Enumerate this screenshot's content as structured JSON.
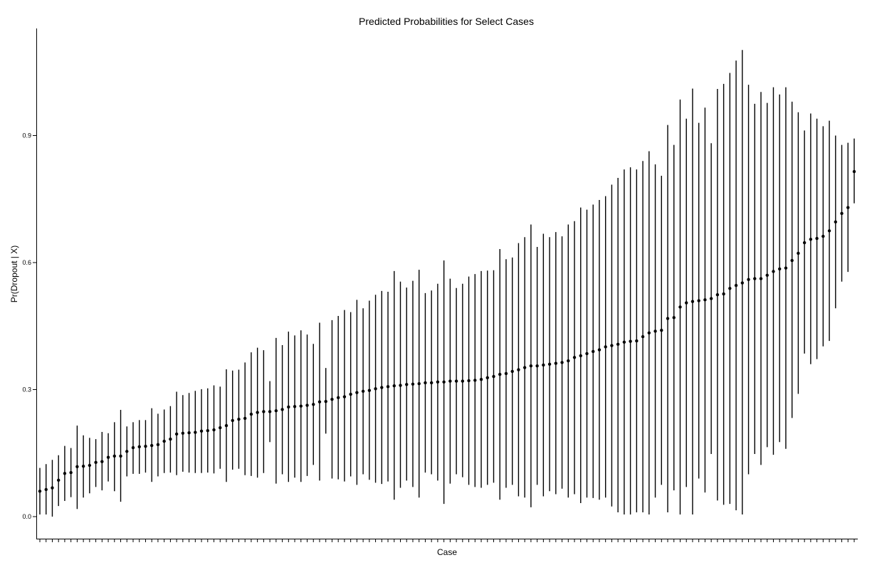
{
  "chart_data": {
    "type": "scatter",
    "title": "Predicted Probabilities for Select Cases",
    "xlabel": "Case",
    "ylabel": "Pr(Dropout | X)",
    "ylim": [
      -0.05,
      1.15
    ],
    "yticks": [
      0.0,
      0.3,
      0.6,
      0.9
    ],
    "ytick_labels": [
      "0.0",
      "0.3",
      "0.6",
      "0.9"
    ],
    "grid": false,
    "legend": "none",
    "error_bars": true,
    "points": [
      {
        "x": 1,
        "y": 0.06,
        "lo": 0.005,
        "hi": 0.115
      },
      {
        "x": 2,
        "y": 0.064,
        "lo": 0.005,
        "hi": 0.124
      },
      {
        "x": 3,
        "y": 0.068,
        "lo": 0.0,
        "hi": 0.134
      },
      {
        "x": 4,
        "y": 0.086,
        "lo": 0.025,
        "hi": 0.145
      },
      {
        "x": 5,
        "y": 0.102,
        "lo": 0.037,
        "hi": 0.167
      },
      {
        "x": 6,
        "y": 0.104,
        "lo": 0.046,
        "hi": 0.162
      },
      {
        "x": 7,
        "y": 0.118,
        "lo": 0.018,
        "hi": 0.215
      },
      {
        "x": 8,
        "y": 0.119,
        "lo": 0.045,
        "hi": 0.192
      },
      {
        "x": 9,
        "y": 0.121,
        "lo": 0.055,
        "hi": 0.186
      },
      {
        "x": 10,
        "y": 0.128,
        "lo": 0.07,
        "hi": 0.183
      },
      {
        "x": 11,
        "y": 0.13,
        "lo": 0.062,
        "hi": 0.2
      },
      {
        "x": 12,
        "y": 0.14,
        "lo": 0.083,
        "hi": 0.197
      },
      {
        "x": 13,
        "y": 0.143,
        "lo": 0.06,
        "hi": 0.223
      },
      {
        "x": 14,
        "y": 0.143,
        "lo": 0.035,
        "hi": 0.252
      },
      {
        "x": 15,
        "y": 0.154,
        "lo": 0.095,
        "hi": 0.213
      },
      {
        "x": 16,
        "y": 0.163,
        "lo": 0.101,
        "hi": 0.223
      },
      {
        "x": 17,
        "y": 0.165,
        "lo": 0.101,
        "hi": 0.228
      },
      {
        "x": 18,
        "y": 0.166,
        "lo": 0.104,
        "hi": 0.228
      },
      {
        "x": 19,
        "y": 0.168,
        "lo": 0.082,
        "hi": 0.256
      },
      {
        "x": 20,
        "y": 0.17,
        "lo": 0.095,
        "hi": 0.243
      },
      {
        "x": 21,
        "y": 0.178,
        "lo": 0.103,
        "hi": 0.253
      },
      {
        "x": 22,
        "y": 0.183,
        "lo": 0.104,
        "hi": 0.261
      },
      {
        "x": 23,
        "y": 0.195,
        "lo": 0.098,
        "hi": 0.295
      },
      {
        "x": 24,
        "y": 0.197,
        "lo": 0.106,
        "hi": 0.287
      },
      {
        "x": 25,
        "y": 0.198,
        "lo": 0.104,
        "hi": 0.292
      },
      {
        "x": 26,
        "y": 0.199,
        "lo": 0.103,
        "hi": 0.297
      },
      {
        "x": 27,
        "y": 0.202,
        "lo": 0.103,
        "hi": 0.301
      },
      {
        "x": 28,
        "y": 0.203,
        "lo": 0.104,
        "hi": 0.303
      },
      {
        "x": 29,
        "y": 0.205,
        "lo": 0.102,
        "hi": 0.31
      },
      {
        "x": 30,
        "y": 0.21,
        "lo": 0.113,
        "hi": 0.307
      },
      {
        "x": 31,
        "y": 0.215,
        "lo": 0.082,
        "hi": 0.348
      },
      {
        "x": 32,
        "y": 0.227,
        "lo": 0.111,
        "hi": 0.345
      },
      {
        "x": 33,
        "y": 0.23,
        "lo": 0.113,
        "hi": 0.347
      },
      {
        "x": 34,
        "y": 0.232,
        "lo": 0.098,
        "hi": 0.364
      },
      {
        "x": 35,
        "y": 0.242,
        "lo": 0.096,
        "hi": 0.388
      },
      {
        "x": 36,
        "y": 0.246,
        "lo": 0.092,
        "hi": 0.399
      },
      {
        "x": 37,
        "y": 0.248,
        "lo": 0.103,
        "hi": 0.393
      },
      {
        "x": 38,
        "y": 0.248,
        "lo": 0.176,
        "hi": 0.32
      },
      {
        "x": 39,
        "y": 0.25,
        "lo": 0.078,
        "hi": 0.422
      },
      {
        "x": 40,
        "y": 0.253,
        "lo": 0.1,
        "hi": 0.405
      },
      {
        "x": 41,
        "y": 0.259,
        "lo": 0.082,
        "hi": 0.437
      },
      {
        "x": 42,
        "y": 0.26,
        "lo": 0.092,
        "hi": 0.428
      },
      {
        "x": 43,
        "y": 0.261,
        "lo": 0.082,
        "hi": 0.44
      },
      {
        "x": 44,
        "y": 0.263,
        "lo": 0.096,
        "hi": 0.43
      },
      {
        "x": 45,
        "y": 0.265,
        "lo": 0.122,
        "hi": 0.408
      },
      {
        "x": 46,
        "y": 0.271,
        "lo": 0.085,
        "hi": 0.458
      },
      {
        "x": 47,
        "y": 0.272,
        "lo": 0.196,
        "hi": 0.351
      },
      {
        "x": 48,
        "y": 0.277,
        "lo": 0.09,
        "hi": 0.464
      },
      {
        "x": 49,
        "y": 0.281,
        "lo": 0.088,
        "hi": 0.474
      },
      {
        "x": 50,
        "y": 0.283,
        "lo": 0.083,
        "hi": 0.488
      },
      {
        "x": 51,
        "y": 0.289,
        "lo": 0.095,
        "hi": 0.483
      },
      {
        "x": 52,
        "y": 0.293,
        "lo": 0.075,
        "hi": 0.512
      },
      {
        "x": 53,
        "y": 0.296,
        "lo": 0.1,
        "hi": 0.492
      },
      {
        "x": 54,
        "y": 0.298,
        "lo": 0.087,
        "hi": 0.51
      },
      {
        "x": 55,
        "y": 0.302,
        "lo": 0.08,
        "hi": 0.524
      },
      {
        "x": 56,
        "y": 0.305,
        "lo": 0.077,
        "hi": 0.533
      },
      {
        "x": 57,
        "y": 0.307,
        "lo": 0.083,
        "hi": 0.531
      },
      {
        "x": 58,
        "y": 0.309,
        "lo": 0.04,
        "hi": 0.58
      },
      {
        "x": 59,
        "y": 0.31,
        "lo": 0.068,
        "hi": 0.555
      },
      {
        "x": 60,
        "y": 0.312,
        "lo": 0.085,
        "hi": 0.541
      },
      {
        "x": 61,
        "y": 0.313,
        "lo": 0.07,
        "hi": 0.557
      },
      {
        "x": 62,
        "y": 0.314,
        "lo": 0.045,
        "hi": 0.583
      },
      {
        "x": 63,
        "y": 0.316,
        "lo": 0.104,
        "hi": 0.528
      },
      {
        "x": 64,
        "y": 0.316,
        "lo": 0.1,
        "hi": 0.534
      },
      {
        "x": 65,
        "y": 0.318,
        "lo": 0.085,
        "hi": 0.55
      },
      {
        "x": 66,
        "y": 0.318,
        "lo": 0.03,
        "hi": 0.605
      },
      {
        "x": 67,
        "y": 0.32,
        "lo": 0.078,
        "hi": 0.562
      },
      {
        "x": 68,
        "y": 0.32,
        "lo": 0.1,
        "hi": 0.54
      },
      {
        "x": 69,
        "y": 0.32,
        "lo": 0.093,
        "hi": 0.55
      },
      {
        "x": 70,
        "y": 0.321,
        "lo": 0.075,
        "hi": 0.567
      },
      {
        "x": 71,
        "y": 0.322,
        "lo": 0.07,
        "hi": 0.573
      },
      {
        "x": 72,
        "y": 0.324,
        "lo": 0.068,
        "hi": 0.58
      },
      {
        "x": 73,
        "y": 0.328,
        "lo": 0.075,
        "hi": 0.581
      },
      {
        "x": 74,
        "y": 0.331,
        "lo": 0.08,
        "hi": 0.582
      },
      {
        "x": 75,
        "y": 0.336,
        "lo": 0.04,
        "hi": 0.632
      },
      {
        "x": 76,
        "y": 0.338,
        "lo": 0.068,
        "hi": 0.608
      },
      {
        "x": 77,
        "y": 0.343,
        "lo": 0.075,
        "hi": 0.612
      },
      {
        "x": 78,
        "y": 0.347,
        "lo": 0.048,
        "hi": 0.646
      },
      {
        "x": 79,
        "y": 0.352,
        "lo": 0.045,
        "hi": 0.66
      },
      {
        "x": 80,
        "y": 0.356,
        "lo": 0.022,
        "hi": 0.69
      },
      {
        "x": 81,
        "y": 0.356,
        "lo": 0.075,
        "hi": 0.637
      },
      {
        "x": 82,
        "y": 0.358,
        "lo": 0.048,
        "hi": 0.668
      },
      {
        "x": 83,
        "y": 0.36,
        "lo": 0.06,
        "hi": 0.66
      },
      {
        "x": 84,
        "y": 0.362,
        "lo": 0.053,
        "hi": 0.672
      },
      {
        "x": 85,
        "y": 0.364,
        "lo": 0.066,
        "hi": 0.662
      },
      {
        "x": 86,
        "y": 0.368,
        "lo": 0.045,
        "hi": 0.69
      },
      {
        "x": 87,
        "y": 0.376,
        "lo": 0.053,
        "hi": 0.698
      },
      {
        "x": 88,
        "y": 0.38,
        "lo": 0.032,
        "hi": 0.73
      },
      {
        "x": 89,
        "y": 0.385,
        "lo": 0.045,
        "hi": 0.725
      },
      {
        "x": 90,
        "y": 0.39,
        "lo": 0.044,
        "hi": 0.737
      },
      {
        "x": 91,
        "y": 0.394,
        "lo": 0.04,
        "hi": 0.748
      },
      {
        "x": 92,
        "y": 0.401,
        "lo": 0.045,
        "hi": 0.757
      },
      {
        "x": 93,
        "y": 0.404,
        "lo": 0.024,
        "hi": 0.784
      },
      {
        "x": 94,
        "y": 0.407,
        "lo": 0.01,
        "hi": 0.8
      },
      {
        "x": 95,
        "y": 0.412,
        "lo": 0.005,
        "hi": 0.82
      },
      {
        "x": 96,
        "y": 0.414,
        "lo": 0.005,
        "hi": 0.825
      },
      {
        "x": 97,
        "y": 0.415,
        "lo": 0.01,
        "hi": 0.82
      },
      {
        "x": 98,
        "y": 0.425,
        "lo": 0.01,
        "hi": 0.84
      },
      {
        "x": 99,
        "y": 0.434,
        "lo": 0.005,
        "hi": 0.863
      },
      {
        "x": 100,
        "y": 0.438,
        "lo": 0.045,
        "hi": 0.832
      },
      {
        "x": 101,
        "y": 0.44,
        "lo": 0.075,
        "hi": 0.805
      },
      {
        "x": 102,
        "y": 0.468,
        "lo": 0.01,
        "hi": 0.925
      },
      {
        "x": 103,
        "y": 0.47,
        "lo": 0.062,
        "hi": 0.878
      },
      {
        "x": 104,
        "y": 0.495,
        "lo": 0.005,
        "hi": 0.985
      },
      {
        "x": 105,
        "y": 0.505,
        "lo": 0.07,
        "hi": 0.94
      },
      {
        "x": 106,
        "y": 0.508,
        "lo": 0.005,
        "hi": 1.011
      },
      {
        "x": 107,
        "y": 0.51,
        "lo": 0.09,
        "hi": 0.93
      },
      {
        "x": 108,
        "y": 0.512,
        "lo": 0.057,
        "hi": 0.966
      },
      {
        "x": 109,
        "y": 0.515,
        "lo": 0.148,
        "hi": 0.882
      },
      {
        "x": 110,
        "y": 0.524,
        "lo": 0.038,
        "hi": 1.01
      },
      {
        "x": 111,
        "y": 0.526,
        "lo": 0.028,
        "hi": 1.022
      },
      {
        "x": 112,
        "y": 0.539,
        "lo": 0.03,
        "hi": 1.048
      },
      {
        "x": 113,
        "y": 0.546,
        "lo": 0.015,
        "hi": 1.077
      },
      {
        "x": 114,
        "y": 0.552,
        "lo": 0.005,
        "hi": 1.102
      },
      {
        "x": 115,
        "y": 0.56,
        "lo": 0.1,
        "hi": 1.02
      },
      {
        "x": 116,
        "y": 0.562,
        "lo": 0.148,
        "hi": 0.975
      },
      {
        "x": 117,
        "y": 0.562,
        "lo": 0.122,
        "hi": 1.003
      },
      {
        "x": 118,
        "y": 0.57,
        "lo": 0.164,
        "hi": 0.977
      },
      {
        "x": 119,
        "y": 0.579,
        "lo": 0.146,
        "hi": 1.014
      },
      {
        "x": 120,
        "y": 0.585,
        "lo": 0.176,
        "hi": 0.997
      },
      {
        "x": 121,
        "y": 0.587,
        "lo": 0.16,
        "hi": 1.014
      },
      {
        "x": 122,
        "y": 0.605,
        "lo": 0.233,
        "hi": 0.98
      },
      {
        "x": 123,
        "y": 0.622,
        "lo": 0.29,
        "hi": 0.955
      },
      {
        "x": 124,
        "y": 0.647,
        "lo": 0.385,
        "hi": 0.912
      },
      {
        "x": 125,
        "y": 0.655,
        "lo": 0.36,
        "hi": 0.952
      },
      {
        "x": 126,
        "y": 0.657,
        "lo": 0.372,
        "hi": 0.94
      },
      {
        "x": 127,
        "y": 0.662,
        "lo": 0.402,
        "hi": 0.922
      },
      {
        "x": 128,
        "y": 0.675,
        "lo": 0.415,
        "hi": 0.935
      },
      {
        "x": 129,
        "y": 0.696,
        "lo": 0.492,
        "hi": 0.9
      },
      {
        "x": 130,
        "y": 0.716,
        "lo": 0.555,
        "hi": 0.878
      },
      {
        "x": 131,
        "y": 0.73,
        "lo": 0.578,
        "hi": 0.883
      },
      {
        "x": 132,
        "y": 0.815,
        "lo": 0.74,
        "hi": 0.893
      }
    ]
  }
}
